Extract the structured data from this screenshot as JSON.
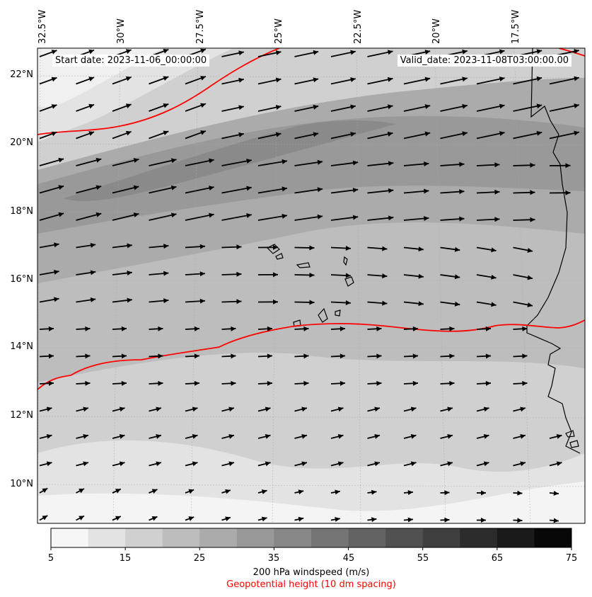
{
  "map": {
    "start_label": "Start date: 2023-11-06_00:00:00",
    "valid_label": "Valid_date: 2023-11-08T03:00:00.00",
    "longitude_labels": [
      "32.5°W",
      "30°W",
      "27.5°W",
      "25°W",
      "22.5°W",
      "20°W",
      "17.5°W"
    ],
    "latitude_labels": [
      "22°N",
      "20°N",
      "18°N",
      "16°N",
      "14°N",
      "12°N",
      "10°N"
    ],
    "extent": {
      "lon_min": -32.5,
      "lon_max": -15.0,
      "lat_min": 8.9,
      "lat_max": 22.8
    },
    "contour_line_color": "#ff0000",
    "vector_color": "#000000",
    "coastline_color": "#000000"
  },
  "colorbar": {
    "title": "200 hPa windspeed (m/s)",
    "subtitle": "Geopotential height (10 dm spacing)",
    "subtitle_color": "#ff0000",
    "tick_labels": [
      "5",
      "15",
      "25",
      "35",
      "45",
      "55",
      "65",
      "75"
    ],
    "min": 5,
    "max": 75,
    "step": 5,
    "colors": [
      "#f6f6f6",
      "#e3e3e3",
      "#d0d0d0",
      "#bdbdbd",
      "#ababab",
      "#999999",
      "#888888",
      "#757575",
      "#636363",
      "#515151",
      "#3f3f3f",
      "#2c2c2c",
      "#1a1a1a",
      "#080808"
    ]
  }
}
